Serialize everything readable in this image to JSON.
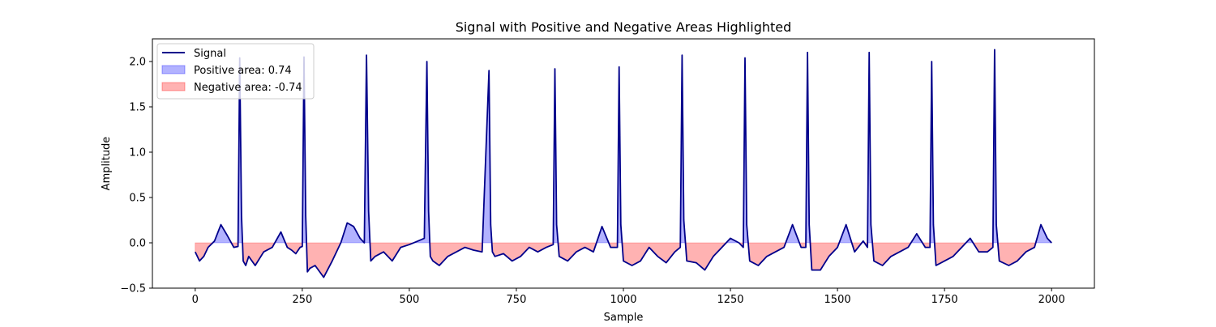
{
  "chart_data": {
    "type": "line",
    "title": "Signal with Positive and Negative Areas Highlighted",
    "xlabel": "Sample",
    "ylabel": "Amplitude",
    "xlim": [
      -100,
      2100
    ],
    "ylim": [
      -0.5,
      2.25
    ],
    "x_ticks": [
      0,
      250,
      500,
      750,
      1000,
      1250,
      1500,
      1750,
      2000
    ],
    "y_ticks": [
      -0.5,
      0.0,
      0.5,
      1.0,
      1.5,
      2.0
    ],
    "x_tick_labels": [
      "0",
      "250",
      "500",
      "750",
      "1000",
      "1250",
      "1500",
      "1750",
      "2000"
    ],
    "y_tick_labels": [
      "−0.5",
      "0.0",
      "0.5",
      "1.0",
      "1.5",
      "2.0"
    ],
    "grid": false,
    "legend_placement": "top-left",
    "legend": {
      "signal": "Signal",
      "positive": "Positive area: 0.74",
      "negative": "Negative area: -0.74"
    },
    "series": [
      {
        "name": "Signal",
        "color": "#00008b",
        "x": [
          0,
          10,
          20,
          30,
          45,
          60,
          75,
          90,
          100,
          104,
          108,
          112,
          118,
          125,
          140,
          160,
          180,
          200,
          215,
          225,
          235,
          245,
          250,
          254,
          258,
          262,
          268,
          280,
          300,
          320,
          340,
          355,
          370,
          385,
          395,
          400,
          405,
          410,
          420,
          440,
          460,
          480,
          500,
          520,
          535,
          541,
          545,
          549,
          555,
          570,
          590,
          610,
          630,
          650,
          670,
          686,
          690,
          694,
          700,
          720,
          740,
          760,
          780,
          800,
          820,
          836,
          840,
          844,
          850,
          870,
          890,
          910,
          930,
          950,
          970,
          986,
          990,
          994,
          1000,
          1020,
          1040,
          1060,
          1080,
          1100,
          1120,
          1133,
          1137,
          1141,
          1148,
          1170,
          1190,
          1210,
          1230,
          1250,
          1270,
          1280,
          1284,
          1288,
          1295,
          1315,
          1335,
          1355,
          1375,
          1395,
          1415,
          1426,
          1430,
          1434,
          1440,
          1460,
          1480,
          1500,
          1520,
          1540,
          1560,
          1570,
          1574,
          1578,
          1585,
          1605,
          1625,
          1645,
          1665,
          1685,
          1705,
          1716,
          1720,
          1724,
          1730,
          1750,
          1770,
          1790,
          1810,
          1830,
          1850,
          1863,
          1867,
          1871,
          1878,
          1900,
          1920,
          1940,
          1960,
          1975,
          1990,
          2000
        ],
        "y": [
          -0.1,
          -0.2,
          -0.15,
          -0.05,
          0.02,
          0.2,
          0.08,
          -0.05,
          -0.04,
          2.04,
          0.3,
          -0.2,
          -0.25,
          -0.15,
          -0.25,
          -0.1,
          -0.05,
          0.12,
          -0.05,
          -0.08,
          -0.12,
          -0.05,
          -0.04,
          2.05,
          0.3,
          -0.32,
          -0.28,
          -0.25,
          -0.38,
          -0.2,
          0.0,
          0.22,
          0.18,
          0.05,
          0.0,
          2.07,
          0.35,
          -0.2,
          -0.15,
          -0.1,
          -0.2,
          -0.05,
          -0.02,
          0.02,
          0.05,
          2.0,
          0.35,
          -0.15,
          -0.2,
          -0.25,
          -0.15,
          -0.1,
          -0.05,
          -0.08,
          -0.1,
          1.9,
          0.2,
          -0.1,
          -0.15,
          -0.12,
          -0.2,
          -0.15,
          -0.05,
          -0.1,
          -0.05,
          -0.02,
          1.92,
          0.2,
          -0.15,
          -0.2,
          -0.1,
          -0.05,
          -0.1,
          0.18,
          -0.05,
          -0.05,
          1.94,
          0.2,
          -0.2,
          -0.25,
          -0.2,
          -0.05,
          -0.15,
          -0.22,
          -0.1,
          -0.05,
          2.07,
          0.25,
          -0.2,
          -0.22,
          -0.3,
          -0.15,
          -0.05,
          0.05,
          0.0,
          -0.05,
          2.04,
          0.2,
          -0.2,
          -0.25,
          -0.15,
          -0.1,
          -0.05,
          0.2,
          -0.05,
          -0.05,
          2.1,
          0.2,
          -0.3,
          -0.3,
          -0.15,
          -0.05,
          0.2,
          -0.1,
          0.02,
          -0.05,
          2.1,
          0.2,
          -0.2,
          -0.25,
          -0.15,
          -0.1,
          -0.05,
          0.1,
          -0.05,
          -0.05,
          2.0,
          0.2,
          -0.25,
          -0.2,
          -0.15,
          -0.05,
          0.05,
          -0.1,
          -0.1,
          -0.05,
          2.13,
          0.2,
          -0.2,
          -0.25,
          -0.2,
          -0.1,
          -0.05,
          0.2,
          0.05,
          0.0
        ]
      }
    ]
  }
}
